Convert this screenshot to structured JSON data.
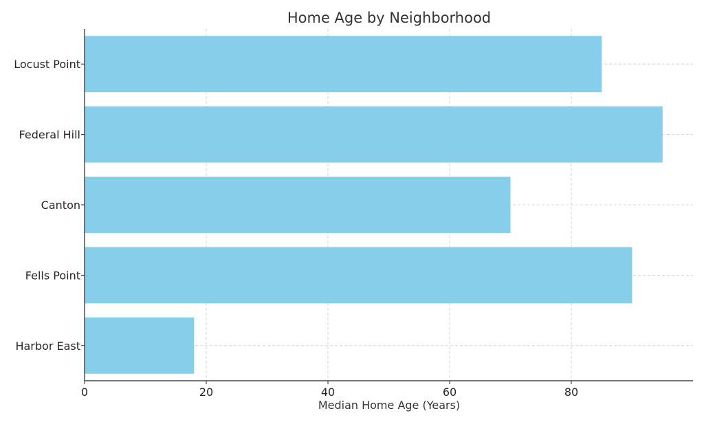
{
  "chart_data": {
    "type": "bar",
    "orientation": "horizontal",
    "title": "Home Age by Neighborhood",
    "xlabel": "Median Home Age (Years)",
    "ylabel": "",
    "categories": [
      "Harbor East",
      "Fells Point",
      "Canton",
      "Federal Hill",
      "Locust Point"
    ],
    "values": [
      18,
      90,
      70,
      95,
      85
    ],
    "xlim": [
      0,
      100
    ],
    "xticks": [
      0,
      20,
      40,
      60,
      80
    ],
    "grid": true,
    "bar_color": "#87CEEB"
  }
}
